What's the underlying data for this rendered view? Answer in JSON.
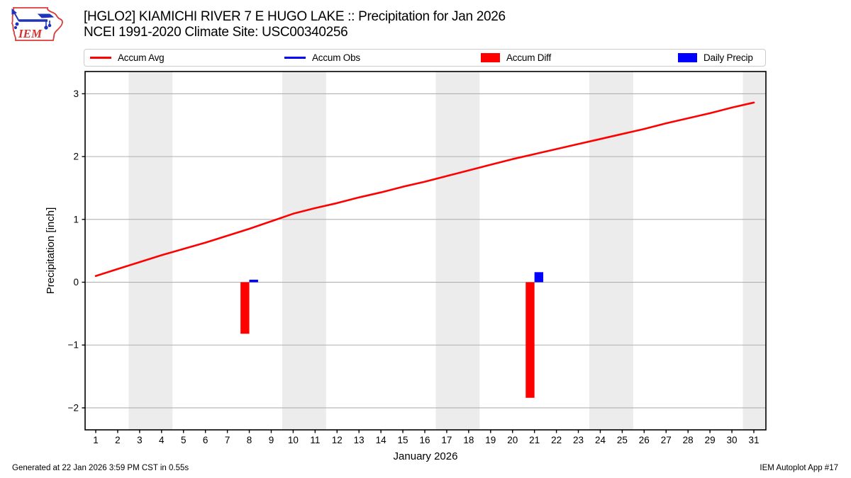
{
  "header": {
    "title_line1": "[HGLO2] KIAMICHI RIVER 7 E HUGO LAKE :: Precipitation for Jan 2026",
    "title_line2": "NCEI 1991-2020 Climate Site: USC00340256",
    "logo_text": "IEM"
  },
  "legend": {
    "items": [
      {
        "label": "Accum Avg",
        "color": "#ff0000",
        "swatch": "line"
      },
      {
        "label": "Accum Obs",
        "color": "#0000ff",
        "swatch": "line"
      },
      {
        "label": "Accum Diff",
        "color": "#ff0000",
        "swatch": "rect"
      },
      {
        "label": "Daily Precip",
        "color": "#0000ff",
        "swatch": "rect"
      }
    ]
  },
  "chart_data": {
    "type": "mixed-line-bar",
    "title": "[HGLO2] KIAMICHI RIVER 7 E HUGO LAKE :: Precipitation for Jan 2026",
    "subtitle": "NCEI 1991-2020 Climate Site: USC00340256",
    "xlabel": "January 2026",
    "ylabel": "Precipitation [inch]",
    "xlim": [
      0.515,
      31.55
    ],
    "ylim": [
      -2.35,
      3.354
    ],
    "x_ticks": [
      1,
      2,
      3,
      4,
      5,
      6,
      7,
      8,
      9,
      10,
      11,
      12,
      13,
      14,
      15,
      16,
      17,
      18,
      19,
      20,
      21,
      22,
      23,
      24,
      25,
      26,
      27,
      28,
      29,
      30,
      31
    ],
    "y_ticks": [
      {
        "value": -2,
        "label": "−2"
      },
      {
        "value": -1,
        "label": "−1"
      },
      {
        "value": 0,
        "label": "0"
      },
      {
        "value": 1,
        "label": "1"
      },
      {
        "value": 2,
        "label": "2"
      },
      {
        "value": 3,
        "label": "3"
      }
    ],
    "grid": true,
    "grid_color": "#b0b0b0",
    "weekend_band_color": "#ececec",
    "weekend_bands": [
      [
        2.5,
        4.5
      ],
      [
        9.5,
        11.5
      ],
      [
        16.5,
        18.5
      ],
      [
        23.5,
        25.5
      ],
      [
        30.5,
        31.55
      ]
    ],
    "legend_position": "top",
    "series": [
      {
        "name": "Accum Avg",
        "type": "line",
        "color": "#ff0000",
        "line_width": 2.6,
        "x": [
          1,
          2,
          3,
          4,
          5,
          6,
          7,
          8,
          9,
          10,
          11,
          12,
          13,
          14,
          15,
          16,
          17,
          18,
          19,
          20,
          21,
          22,
          23,
          24,
          25,
          26,
          27,
          28,
          29,
          30,
          31
        ],
        "y": [
          0.1,
          0.21,
          0.32,
          0.43,
          0.53,
          0.63,
          0.74,
          0.85,
          0.97,
          1.09,
          1.18,
          1.26,
          1.35,
          1.43,
          1.52,
          1.6,
          1.69,
          1.78,
          1.87,
          1.96,
          2.04,
          2.12,
          2.2,
          2.28,
          2.36,
          2.44,
          2.53,
          2.61,
          2.69,
          2.78,
          2.86
        ]
      },
      {
        "name": "Accum Diff",
        "type": "bar",
        "color": "#ff0000",
        "bar_offset": -0.2,
        "bar_width": 0.4,
        "points": [
          {
            "x": 8,
            "y": -0.82
          },
          {
            "x": 21,
            "y": -1.84
          }
        ]
      },
      {
        "name": "Daily Precip",
        "type": "bar",
        "color": "#0000ff",
        "bar_offset": 0.2,
        "bar_width": 0.4,
        "points": [
          {
            "x": 8,
            "y": 0.04
          },
          {
            "x": 21,
            "y": 0.16
          }
        ]
      }
    ]
  },
  "footer": {
    "left": "Generated at 22 Jan 2026 3:59 PM CST in 0.55s",
    "right": "IEM Autoplot App #17"
  }
}
